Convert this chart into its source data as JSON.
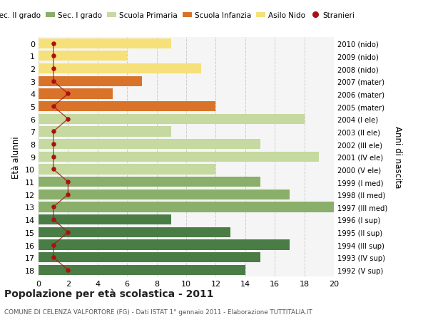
{
  "ages": [
    18,
    17,
    16,
    15,
    14,
    13,
    12,
    11,
    10,
    9,
    8,
    7,
    6,
    5,
    4,
    3,
    2,
    1,
    0
  ],
  "years": [
    "1992 (V sup)",
    "1993 (IV sup)",
    "1994 (III sup)",
    "1995 (II sup)",
    "1996 (I sup)",
    "1997 (III med)",
    "1998 (II med)",
    "1999 (I med)",
    "2000 (V ele)",
    "2001 (IV ele)",
    "2002 (III ele)",
    "2003 (II ele)",
    "2004 (I ele)",
    "2005 (mater)",
    "2006 (mater)",
    "2007 (mater)",
    "2008 (nido)",
    "2009 (nido)",
    "2010 (nido)"
  ],
  "bar_values": [
    14,
    15,
    17,
    13,
    9,
    20,
    17,
    15,
    12,
    19,
    15,
    9,
    18,
    12,
    5,
    7,
    11,
    6,
    9
  ],
  "bar_colors": [
    "#4a7c45",
    "#4a7c45",
    "#4a7c45",
    "#4a7c45",
    "#4a7c45",
    "#8aaf6a",
    "#8aaf6a",
    "#8aaf6a",
    "#c5d9a0",
    "#c5d9a0",
    "#c5d9a0",
    "#c5d9a0",
    "#c5d9a0",
    "#d9732a",
    "#d9732a",
    "#d9732a",
    "#f5e07a",
    "#f5e07a",
    "#f5e07a"
  ],
  "stranieri_values": [
    2,
    1,
    1,
    2,
    1,
    1,
    2,
    2,
    1,
    1,
    1,
    1,
    2,
    1,
    2,
    1,
    1,
    1,
    1
  ],
  "stranieri_color": "#aa1111",
  "legend_labels": [
    "Sec. II grado",
    "Sec. I grado",
    "Scuola Primaria",
    "Scuola Infanzia",
    "Asilo Nido",
    "Stranieri"
  ],
  "legend_colors": [
    "#4a7c45",
    "#8aaf6a",
    "#c5d9a0",
    "#d9732a",
    "#f5e07a",
    "#aa1111"
  ],
  "xlabel_right": "Anni di nascita",
  "ylabel_left": "Età alunni",
  "title": "Popolazione per età scolastica - 2011",
  "subtitle": "COMUNE DI CELENZA VALFORTORE (FG) - Dati ISTAT 1° gennaio 2011 - Elaborazione TUTTITALIA.IT",
  "xlim": [
    0,
    20
  ],
  "xticks": [
    0,
    2,
    4,
    6,
    8,
    10,
    12,
    14,
    16,
    18,
    20
  ],
  "bg_color": "#ffffff",
  "plot_bg_color": "#f5f5f5",
  "grid_color": "#cccccc"
}
